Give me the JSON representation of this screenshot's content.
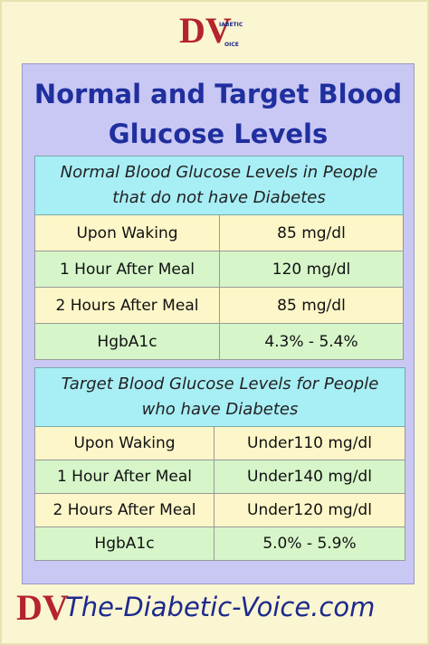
{
  "logo": {
    "letters": "DV",
    "line1": "IABETIC",
    "line2": "OICE"
  },
  "title": "Normal and Target Blood Glucose Levels",
  "tables": [
    {
      "header": "Normal Blood Glucose Levels in People that do not have Diabetes",
      "rows": [
        [
          "Upon Waking",
          "85 mg/dl"
        ],
        [
          "1 Hour After Meal",
          "120 mg/dl"
        ],
        [
          "2 Hours After Meal",
          "85 mg/dl"
        ],
        [
          "HgbA1c",
          "4.3% - 5.4%"
        ]
      ]
    },
    {
      "header": "Target Blood Glucose  Levels for People who have Diabetes",
      "rows": [
        [
          "Upon Waking",
          "Under110 mg/dl"
        ],
        [
          "1 Hour After Meal",
          "Under140 mg/dl"
        ],
        [
          "2 Hours After Meal",
          "Under120 mg/dl"
        ],
        [
          "HgbA1c",
          "5.0% - 5.9%"
        ]
      ]
    }
  ],
  "footer": {
    "logo": "DV",
    "site": "The-Diabetic-Voice.com"
  }
}
